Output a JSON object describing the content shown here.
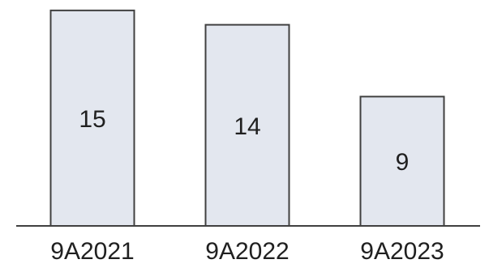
{
  "chart_data": {
    "type": "bar",
    "title": "",
    "xlabel": "",
    "ylabel": "",
    "categories": [
      "9A2021",
      "9A2022",
      "9A2023"
    ],
    "values": [
      15,
      14,
      9
    ],
    "data_labels": [
      "15",
      "14",
      "9"
    ],
    "ylim": [
      0,
      15.5
    ],
    "grid": false,
    "legend": "none",
    "colors": {
      "bar_fill": "#e3e7ef",
      "bar_stroke": "#404040",
      "axis": "#404040",
      "text": "#202020"
    }
  }
}
